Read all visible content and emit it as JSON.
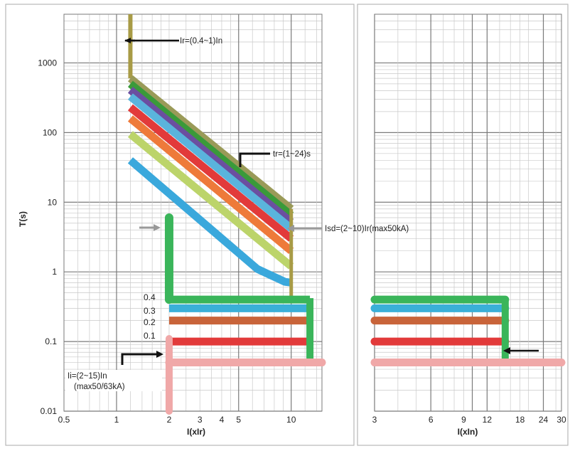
{
  "chart_data": [
    {
      "type": "line",
      "xscale": "log",
      "yscale": "log",
      "xlim": [
        0.5,
        15
      ],
      "ylim": [
        0.01,
        5000
      ],
      "xlabel": "I(xIr)",
      "ylabel": "T(s)",
      "x_ticks": [
        0.5,
        1,
        2,
        3,
        4,
        5,
        10
      ],
      "x_tick_labels": [
        "0.5",
        "1",
        "2",
        "3",
        "4",
        "5",
        "10"
      ],
      "y_ticks": [
        0.01,
        0.1,
        1,
        10,
        100,
        1000
      ],
      "y_tick_labels": [
        "0.01",
        "0.1",
        "1",
        "10",
        "100",
        "1000"
      ],
      "grid": true,
      "annotations": {
        "ir": "Ir=(0.4~1)In",
        "tr": "tr=(1~24)s",
        "isd": "Isd=(2~10)Ir(max50kA)",
        "ii_line1": "Ii=(2~15)In",
        "ii_line2": "(max50/63kA)"
      },
      "tsd_labels": [
        {
          "label": "0.4",
          "value": 0.4
        },
        {
          "label": "0.3",
          "value": 0.3
        },
        {
          "label": "0.2",
          "value": 0.2
        },
        {
          "label": "0.1",
          "value": 0.1
        }
      ],
      "series": [
        {
          "color": "#9a9a58",
          "x": [
            1.2,
            10
          ],
          "y": [
            600,
            8
          ]
        },
        {
          "color": "#3a9a3a",
          "x": [
            1.2,
            10
          ],
          "y": [
            500,
            6.5
          ]
        },
        {
          "color": "#6b4fa0",
          "x": [
            1.2,
            10
          ],
          "y": [
            410,
            5.2
          ]
        },
        {
          "color": "#5ab4dc",
          "x": [
            1.2,
            10
          ],
          "y": [
            330,
            4.2
          ]
        },
        {
          "color": "#e23a3a",
          "x": [
            1.2,
            10
          ],
          "y": [
            230,
            3
          ]
        },
        {
          "color": "#ee7a3a",
          "x": [
            1.2,
            10
          ],
          "y": [
            160,
            2
          ]
        },
        {
          "color": "#bcd46a",
          "x": [
            1.2,
            10
          ],
          "y": [
            95,
            1.2
          ]
        },
        {
          "color": "#3aa8dc",
          "x": [
            1.2,
            6.4,
            9.2,
            10
          ],
          "y": [
            40,
            1.1,
            0.72,
            0.7
          ]
        }
      ],
      "tsd_series": [
        {
          "color": "#3ab55a",
          "y": 0.4
        },
        {
          "color": "#3ab0d8",
          "y": 0.3
        },
        {
          "color": "#c8643a",
          "y": 0.2
        },
        {
          "color": "#e23a3a",
          "y": 0.1
        }
      ],
      "ir_band": {
        "color": "#a89b46",
        "x": 1.2
      },
      "isd_band": {
        "color": "#3ab55a",
        "x": 2
      },
      "ii_band": {
        "color": "#f0a8a8",
        "x": 2,
        "y": 0.05
      }
    },
    {
      "type": "line",
      "xscale": "log",
      "yscale": "log",
      "xlim": [
        3,
        30
      ],
      "ylim": [
        0.01,
        5000
      ],
      "xlabel": "I(xIn)",
      "x_ticks": [
        3,
        6,
        9,
        12,
        18,
        24,
        30
      ],
      "x_tick_labels": [
        "3",
        "6",
        "9",
        "12",
        "18",
        "24",
        "30"
      ],
      "grid": true,
      "tsd_series": [
        {
          "color": "#3ab55a",
          "y": 0.4
        },
        {
          "color": "#3ab0d8",
          "y": 0.3
        },
        {
          "color": "#c8643a",
          "y": 0.2
        },
        {
          "color": "#e23a3a",
          "y": 0.1
        }
      ],
      "tsd_end_x": 15,
      "ii_line": {
        "color": "#f0a8a8",
        "y": 0.05
      }
    }
  ]
}
